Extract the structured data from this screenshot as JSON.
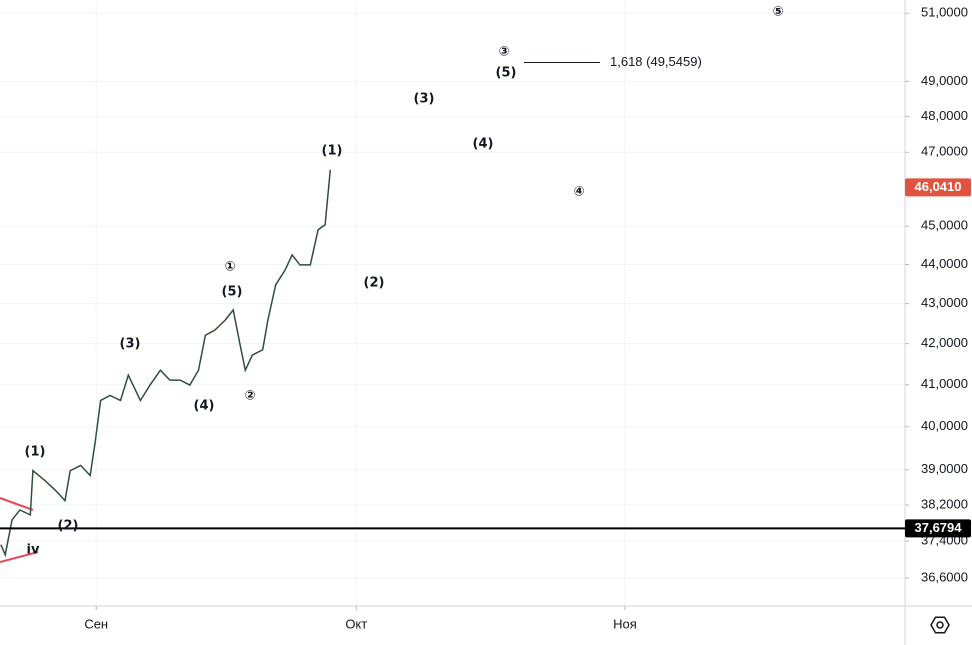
{
  "chart_data": {
    "type": "line",
    "log_scale": true,
    "grid": true,
    "xlim": [
      -11.1,
      93.3
    ],
    "xticks": [
      {
        "value": 0,
        "label": "Сен"
      },
      {
        "value": 30,
        "label": "Окт"
      },
      {
        "value": 61,
        "label": "Ноя"
      }
    ],
    "ylim": [
      36.0,
      51.4
    ],
    "yticks": [
      {
        "value": 36.6,
        "label": "36,6000"
      },
      {
        "value": 37.4,
        "label": "37,4000"
      },
      {
        "value": 38.2,
        "label": "38,2000"
      },
      {
        "value": 39,
        "label": "39,0000"
      },
      {
        "value": 40,
        "label": "40,0000"
      },
      {
        "value": 41,
        "label": "41,0000"
      },
      {
        "value": 42,
        "label": "42,0000"
      },
      {
        "value": 43,
        "label": "43,0000"
      },
      {
        "value": 44,
        "label": "44,0000"
      },
      {
        "value": 45,
        "label": "45,0000"
      },
      {
        "value": 47,
        "label": "47,0000"
      },
      {
        "value": 48,
        "label": "48,0000"
      },
      {
        "value": 49,
        "label": "49,0000"
      },
      {
        "value": 51,
        "label": "51,0000"
      }
    ],
    "series": [
      {
        "color": "#2f4f3a",
        "x": [
          -11.0,
          -10.5,
          -9.7,
          -8.8,
          -7.6,
          -7.3,
          -5.9,
          -4.7,
          -3.6,
          -3.0,
          -1.8,
          -0.7,
          -0.1,
          0.5,
          1.6,
          2.8,
          3.7,
          5.1,
          6.2,
          7.4,
          8.5,
          9.7,
          10.8,
          11.8,
          12.6,
          13.7,
          14.9,
          15.8,
          16.6,
          17.2,
          18.0,
          19.2,
          19.8,
          20.7,
          21.8,
          22.6,
          23.5,
          24.7,
          25.6,
          26.4,
          27.0
        ],
        "values": [
          37.32,
          37.1,
          37.87,
          38.09,
          37.98,
          38.98,
          38.75,
          38.53,
          38.3,
          38.98,
          39.1,
          38.87,
          39.68,
          40.62,
          40.74,
          40.62,
          41.23,
          40.62,
          40.99,
          41.35,
          41.11,
          41.11,
          40.99,
          41.35,
          42.21,
          42.34,
          42.59,
          42.84,
          41.97,
          41.35,
          41.72,
          41.85,
          42.59,
          43.48,
          43.86,
          44.25,
          43.99,
          43.99,
          44.91,
          45.04,
          46.52
        ]
      }
    ],
    "price_lines": [
      {
        "value": 46.041,
        "label": "46,0410",
        "color": "#e0533e",
        "line": false
      },
      {
        "value": 37.6794,
        "label": "37,6794",
        "color": "#000000",
        "line": true
      }
    ],
    "fib": {
      "value": 49.5459,
      "label": "1,618 (49,5459)"
    },
    "annotations": [
      "(1)",
      "(2)",
      "iv",
      "(3)",
      "(4)",
      "①",
      "(5)",
      "②",
      "(1)",
      "(2)",
      "(3)",
      "(4)",
      "③",
      "(5)",
      "④",
      "⑤"
    ]
  }
}
